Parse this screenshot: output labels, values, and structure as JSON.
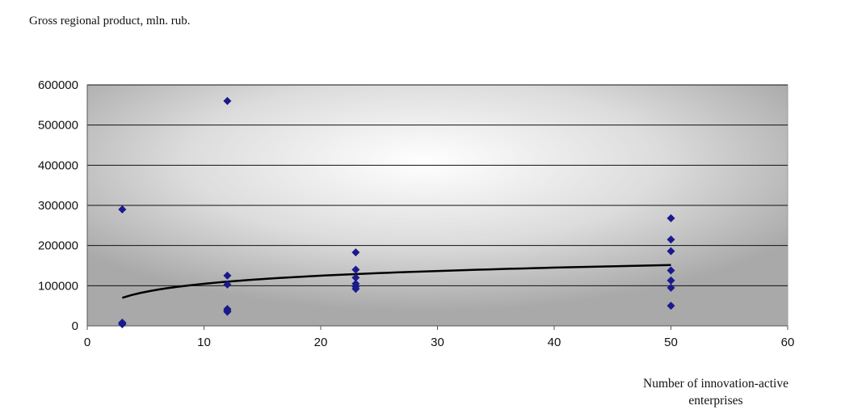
{
  "chart_data": {
    "type": "scatter",
    "ylabel": "Gross regional product, mln. rub.",
    "xlabel_lines": [
      "Number of innovation-active",
      "enterprises"
    ],
    "xlim": [
      0,
      60
    ],
    "ylim": [
      0,
      600000
    ],
    "xticks": [
      "0",
      "10",
      "20",
      "30",
      "40",
      "50",
      "60"
    ],
    "yticks": [
      "0",
      "100000",
      "200000",
      "300000",
      "400000",
      "500000",
      "600000"
    ],
    "grid": true,
    "legend": "none",
    "marker_color": "#1a1a8c",
    "trend_color": "#000000",
    "points": [
      {
        "x": 3,
        "y": 290000
      },
      {
        "x": 3,
        "y": 8000
      },
      {
        "x": 3,
        "y": 4000
      },
      {
        "x": 3,
        "y": 6000
      },
      {
        "x": 12,
        "y": 560000
      },
      {
        "x": 12,
        "y": 125000
      },
      {
        "x": 12,
        "y": 103000
      },
      {
        "x": 12,
        "y": 42000
      },
      {
        "x": 12,
        "y": 38000
      },
      {
        "x": 12,
        "y": 35000
      },
      {
        "x": 23,
        "y": 183000
      },
      {
        "x": 23,
        "y": 140000
      },
      {
        "x": 23,
        "y": 120000
      },
      {
        "x": 23,
        "y": 105000
      },
      {
        "x": 23,
        "y": 98000
      },
      {
        "x": 23,
        "y": 92000
      },
      {
        "x": 50,
        "y": 268000
      },
      {
        "x": 50,
        "y": 215000
      },
      {
        "x": 50,
        "y": 186000
      },
      {
        "x": 50,
        "y": 138000
      },
      {
        "x": 50,
        "y": 113000
      },
      {
        "x": 50,
        "y": 95000
      },
      {
        "x": 50,
        "y": 50000
      }
    ],
    "trendline": {
      "type": "logarithmic",
      "a": 29000,
      "b": 38000,
      "x_range": [
        3,
        50
      ]
    }
  }
}
